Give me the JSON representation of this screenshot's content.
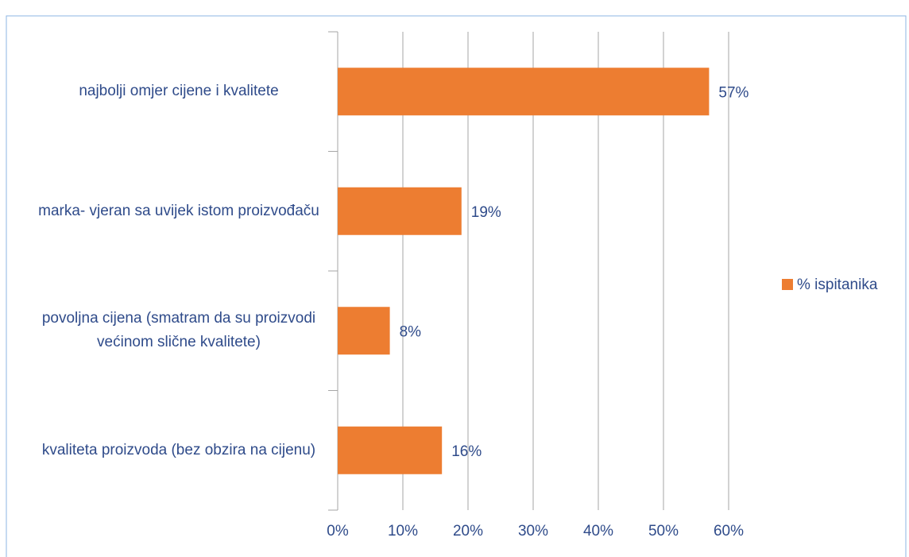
{
  "chart_data": {
    "type": "bar",
    "orientation": "horizontal",
    "categories": [
      "najbolji omjer cijene i kvalitete",
      "marka- vjeran sa uvijek istom proizvođaču",
      "povoljna cijena (smatram da su proizvodi većinom slične kvalitete)",
      "kvaliteta proizvoda (bez obzira na cijenu)"
    ],
    "series": [
      {
        "name": "% ispitanika",
        "color": "#ed7d31",
        "values": [
          57,
          19,
          8,
          16
        ],
        "value_labels": [
          "57%",
          "19%",
          "8%",
          "16%"
        ]
      }
    ],
    "xlim": [
      0,
      60
    ],
    "xticks": [
      {
        "value": 0,
        "label": "0%"
      },
      {
        "value": 10,
        "label": "10%"
      },
      {
        "value": 20,
        "label": "20%"
      },
      {
        "value": 30,
        "label": "30%"
      },
      {
        "value": 40,
        "label": "40%"
      },
      {
        "value": 50,
        "label": "50%"
      },
      {
        "value": 60,
        "label": "60%"
      }
    ],
    "grid": true,
    "legend": "right"
  }
}
